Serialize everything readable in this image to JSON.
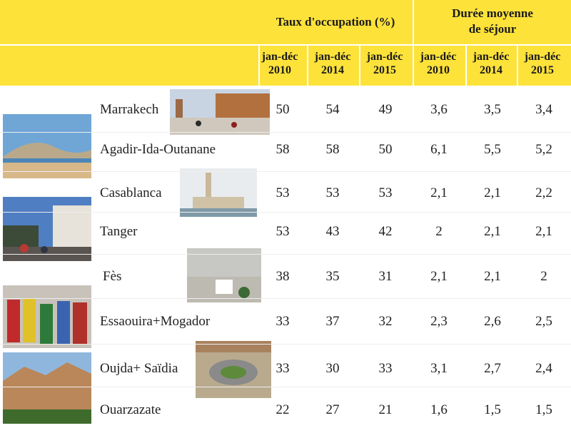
{
  "header": {
    "group1": "Taux d'occupation (%)",
    "group2_line1": "Durée moyenne",
    "group2_line2": "de séjour",
    "columns": [
      {
        "l1": "jan-déc",
        "l2": "2010"
      },
      {
        "l1": "jan-déc",
        "l2": "2014"
      },
      {
        "l1": "jan-déc",
        "l2": "2015"
      },
      {
        "l1": "jan-déc",
        "l2": "2010"
      },
      {
        "l1": "jan-déc",
        "l2": "2014"
      },
      {
        "l1": "jan-déc",
        "l2": "2015"
      }
    ]
  },
  "rows": [
    {
      "city": "Marrakech",
      "values": [
        "50",
        "54",
        "49",
        "3,6",
        "3,5",
        "3,4"
      ]
    },
    {
      "city": "Agadir-Ida-Outanane",
      "values": [
        "58",
        "58",
        "50",
        "6,1",
        "5,5",
        "5,2"
      ]
    },
    {
      "city": "Casablanca",
      "values": [
        "53",
        "53",
        "53",
        "2,1",
        "2,1",
        "2,2"
      ]
    },
    {
      "city": "Tanger",
      "values": [
        "53",
        "43",
        "42",
        "2",
        "2,1",
        "2,1"
      ]
    },
    {
      "city": "Fès",
      "values": [
        "38",
        "35",
        "31",
        "2,1",
        "2,1",
        "2"
      ]
    },
    {
      "city": "Essaouira+Mogador",
      "values": [
        "33",
        "37",
        "32",
        "2,3",
        "2,6",
        "2,5"
      ]
    },
    {
      "city": "Oujda+ Saïdia",
      "values": [
        "33",
        "30",
        "33",
        "3,1",
        "2,7",
        "2,4"
      ]
    },
    {
      "city": "Ouarzazate",
      "values": [
        "22",
        "27",
        "21",
        "1,6",
        "1,5",
        "1,5"
      ]
    }
  ],
  "colors": {
    "header_bg": "#fde23a",
    "text": "#222222"
  }
}
